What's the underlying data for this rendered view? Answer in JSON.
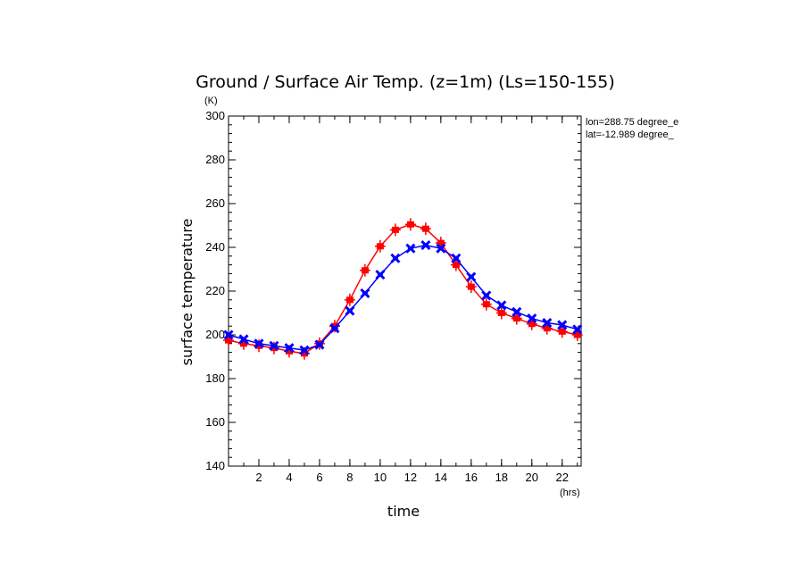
{
  "chart_data": {
    "type": "line",
    "title": "Ground / Surface Air Temp. (z=1m) (Ls=150-155)",
    "xlabel": "time",
    "ylabel": "surface temperature",
    "x_unit": "(hrs)",
    "y_unit": "(K)",
    "xlim": [
      0,
      23.25
    ],
    "ylim": [
      140,
      300
    ],
    "x_ticks": [
      2,
      4,
      6,
      8,
      10,
      12,
      14,
      16,
      18,
      20,
      22
    ],
    "y_ticks": [
      140,
      160,
      180,
      200,
      220,
      240,
      260,
      280,
      300
    ],
    "annotations": [
      "lon=288.75 degree_e",
      "lat=-12.989 degree_"
    ],
    "x": [
      0,
      1,
      2,
      3,
      4,
      5,
      6,
      7,
      8,
      9,
      10,
      11,
      12,
      13,
      14,
      15,
      16,
      17,
      18,
      19,
      20,
      21,
      22,
      23
    ],
    "series": [
      {
        "color": "#ff0000",
        "marker": "square-cross",
        "values": [
          197.5,
          196,
          195,
          194,
          192.5,
          191.5,
          196,
          204,
          216,
          229.5,
          240.5,
          248,
          250.5,
          248.5,
          242,
          232,
          222,
          214,
          210,
          207.5,
          205,
          203,
          201.5,
          200
        ]
      },
      {
        "color": "#0000ff",
        "marker": "x",
        "values": [
          200,
          198,
          196,
          195,
          194,
          193,
          195.5,
          203,
          211,
          219,
          227.5,
          235,
          239.5,
          241,
          239.5,
          235,
          226.5,
          218,
          213.5,
          210.5,
          207.5,
          205.5,
          204.5,
          202.5
        ]
      }
    ]
  }
}
